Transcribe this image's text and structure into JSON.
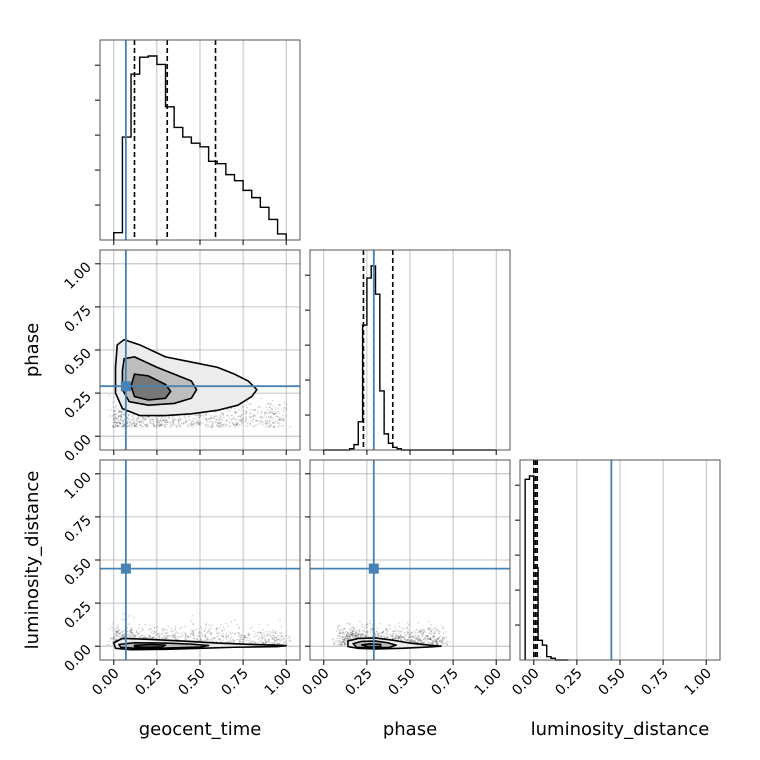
{
  "chart_data": {
    "type": "corner",
    "parameters": [
      "geocent_time",
      "phase",
      "luminosity_distance"
    ],
    "truths": {
      "geocent_time": 0.07,
      "phase": 0.29,
      "luminosity_distance": 0.45
    },
    "quantiles": {
      "geocent_time": [
        0.12,
        0.31,
        0.59
      ],
      "phase": [
        0.23,
        0.29,
        0.4
      ],
      "luminosity_distance": [
        0.0,
        0.01,
        0.02
      ]
    },
    "axis_range": [
      -0.08,
      1.08
    ],
    "tick_values": [
      0.0,
      0.25,
      0.5,
      0.75,
      1.0
    ],
    "tick_labels": [
      "0.00",
      "0.25",
      "0.50",
      "0.75",
      "1.00"
    ],
    "colors": {
      "truth": "#4682b4",
      "contour": "#000000",
      "fill": "#808080",
      "grid": "#b0b0b0"
    },
    "grid": true,
    "histograms": {
      "geocent_time": {
        "bin_edges": [
          0.0,
          0.05,
          0.1,
          0.15,
          0.2,
          0.25,
          0.3,
          0.35,
          0.4,
          0.45,
          0.5,
          0.55,
          0.6,
          0.65,
          0.7,
          0.75,
          0.8,
          0.85,
          0.9,
          0.95,
          1.0
        ],
        "counts": [
          6,
          85,
          137,
          151,
          152,
          145,
          110,
          93,
          85,
          80,
          77,
          65,
          63,
          54,
          49,
          41,
          35,
          27,
          17,
          5
        ]
      },
      "phase": {
        "bin_edges": [
          0.0,
          0.025,
          0.05,
          0.075,
          0.1,
          0.125,
          0.15,
          0.175,
          0.2,
          0.225,
          0.25,
          0.275,
          0.3,
          0.325,
          0.35,
          0.375,
          0.4,
          0.425,
          0.45,
          0.475,
          0.5,
          0.525,
          0.55,
          0.575,
          0.6,
          0.625,
          0.65,
          0.675,
          0.7,
          0.725,
          0.75,
          0.775,
          0.8,
          0.825,
          0.85,
          0.875,
          0.9,
          0.925,
          0.95,
          0.975,
          1.0
        ],
        "counts": [
          0,
          0,
          0,
          0,
          0,
          0,
          1,
          4,
          21,
          93,
          128,
          137,
          116,
          44,
          12,
          5,
          2,
          1,
          0,
          0,
          0,
          0,
          0,
          0,
          0,
          0,
          0,
          0,
          0,
          0,
          0,
          0,
          0,
          0,
          0,
          0,
          0,
          0,
          0,
          0
        ]
      },
      "luminosity_distance": {
        "bin_edges": [
          -0.05,
          -0.025,
          0.0,
          0.025,
          0.05,
          0.075,
          0.1,
          0.125,
          0.15,
          0.175,
          0.2
        ],
        "counts": [
          110,
          112,
          56,
          12,
          9,
          2,
          1,
          0,
          0,
          0
        ]
      }
    },
    "contours_2d": {
      "phase_vs_geocent_time": {
        "levels": [
          [
            [
              0.02,
              0.53
            ],
            [
              0.06,
              0.56
            ],
            [
              0.15,
              0.53
            ],
            [
              0.3,
              0.46
            ],
            [
              0.45,
              0.43
            ],
            [
              0.6,
              0.4
            ],
            [
              0.7,
              0.36
            ],
            [
              0.78,
              0.32
            ],
            [
              0.83,
              0.27
            ],
            [
              0.8,
              0.23
            ],
            [
              0.72,
              0.18
            ],
            [
              0.6,
              0.15
            ],
            [
              0.45,
              0.13
            ],
            [
              0.3,
              0.12
            ],
            [
              0.15,
              0.12
            ],
            [
              0.05,
              0.16
            ],
            [
              0.01,
              0.25
            ],
            [
              0.01,
              0.4
            ]
          ],
          [
            [
              0.06,
              0.45
            ],
            [
              0.12,
              0.46
            ],
            [
              0.25,
              0.4
            ],
            [
              0.35,
              0.36
            ],
            [
              0.45,
              0.32
            ],
            [
              0.48,
              0.27
            ],
            [
              0.45,
              0.22
            ],
            [
              0.35,
              0.19
            ],
            [
              0.2,
              0.18
            ],
            [
              0.09,
              0.2
            ],
            [
              0.05,
              0.27
            ],
            [
              0.05,
              0.38
            ]
          ],
          [
            [
              0.12,
              0.36
            ],
            [
              0.2,
              0.35
            ],
            [
              0.3,
              0.3
            ],
            [
              0.33,
              0.26
            ],
            [
              0.3,
              0.22
            ],
            [
              0.2,
              0.21
            ],
            [
              0.12,
              0.23
            ],
            [
              0.1,
              0.29
            ]
          ]
        ],
        "scatter_range": {
          "x": [
            0.0,
            1.0
          ],
          "y": [
            0.0,
            0.65
          ]
        }
      },
      "luminosity_distance_vs_geocent_time": {
        "levels": [
          [
            [
              0.0,
              0.02
            ],
            [
              0.05,
              0.045
            ],
            [
              0.2,
              0.04
            ],
            [
              0.4,
              0.03
            ],
            [
              0.6,
              0.018
            ],
            [
              0.8,
              0.01
            ],
            [
              0.95,
              0.006
            ],
            [
              1.0,
              0.003
            ],
            [
              0.95,
              -0.002
            ],
            [
              0.7,
              -0.006
            ],
            [
              0.5,
              -0.012
            ],
            [
              0.3,
              -0.018
            ],
            [
              0.1,
              -0.02
            ],
            [
              0.01,
              -0.012
            ]
          ],
          [
            [
              0.03,
              0.01
            ],
            [
              0.12,
              0.02
            ],
            [
              0.3,
              0.018
            ],
            [
              0.45,
              0.012
            ],
            [
              0.55,
              0.004
            ],
            [
              0.5,
              -0.005
            ],
            [
              0.3,
              -0.011
            ],
            [
              0.12,
              -0.012
            ],
            [
              0.04,
              -0.006
            ]
          ],
          [
            [
              0.12,
              0.005
            ],
            [
              0.22,
              0.01
            ],
            [
              0.3,
              0.006
            ],
            [
              0.28,
              -0.004
            ],
            [
              0.18,
              -0.006
            ],
            [
              0.12,
              -0.002
            ]
          ]
        ],
        "scatter_range": {
          "x": [
            0.0,
            1.0
          ],
          "y": [
            -0.03,
            0.4
          ]
        }
      },
      "luminosity_distance_vs_phase": {
        "levels": [
          [
            [
              0.14,
              0.03
            ],
            [
              0.2,
              0.045
            ],
            [
              0.3,
              0.048
            ],
            [
              0.4,
              0.035
            ],
            [
              0.5,
              0.018
            ],
            [
              0.62,
              0.005
            ],
            [
              0.68,
              0.0
            ],
            [
              0.6,
              -0.005
            ],
            [
              0.45,
              -0.012
            ],
            [
              0.3,
              -0.016
            ],
            [
              0.2,
              -0.012
            ],
            [
              0.14,
              -0.002
            ]
          ],
          [
            [
              0.17,
              0.015
            ],
            [
              0.22,
              0.028
            ],
            [
              0.3,
              0.03
            ],
            [
              0.37,
              0.02
            ],
            [
              0.42,
              0.006
            ],
            [
              0.38,
              -0.007
            ],
            [
              0.28,
              -0.01
            ],
            [
              0.19,
              -0.006
            ]
          ],
          [
            [
              0.22,
              0.008
            ],
            [
              0.27,
              0.014
            ],
            [
              0.33,
              0.01
            ],
            [
              0.33,
              -0.003
            ],
            [
              0.26,
              -0.005
            ]
          ]
        ],
        "scatter_range": {
          "x": [
            0.1,
            0.7
          ],
          "y": [
            -0.03,
            0.4
          ]
        }
      }
    }
  }
}
